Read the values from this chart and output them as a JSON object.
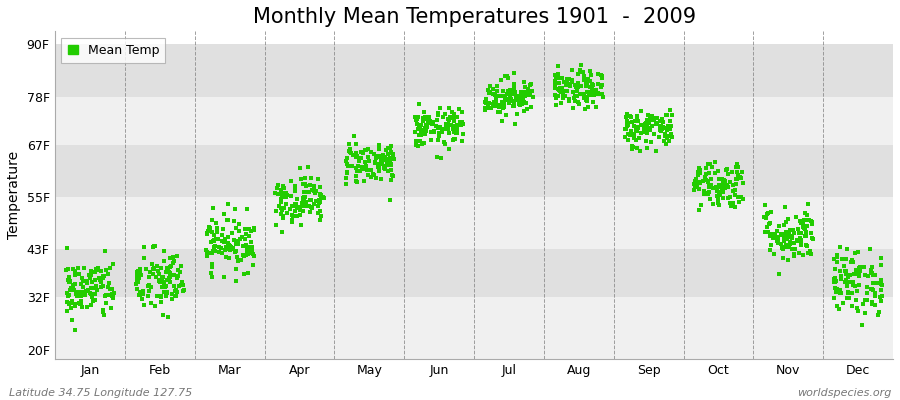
{
  "title": "Monthly Mean Temperatures 1901  -  2009",
  "ylabel": "Temperature",
  "yticks": [
    20,
    32,
    43,
    55,
    67,
    78,
    90
  ],
  "ytick_labels": [
    "20F",
    "32F",
    "43F",
    "55F",
    "67F",
    "78F",
    "90F"
  ],
  "ylim": [
    18,
    93
  ],
  "months": [
    "Jan",
    "Feb",
    "Mar",
    "Apr",
    "May",
    "Jun",
    "Jul",
    "Aug",
    "Sep",
    "Oct",
    "Nov",
    "Dec"
  ],
  "xlim": [
    0,
    12
  ],
  "dot_color": "#22cc00",
  "dot_size": 5,
  "bg_light": "#f0f0f0",
  "bg_dark": "#e0e0e0",
  "legend_label": "Mean Temp",
  "bottom_left_text": "Latitude 34.75 Longitude 127.75",
  "bottom_right_text": "worldspecies.org",
  "mean_temps_f": [
    33.8,
    35.5,
    44.6,
    54.5,
    63.0,
    70.7,
    78.0,
    79.5,
    70.7,
    58.0,
    46.4,
    35.5
  ],
  "std_temps_f": [
    3.5,
    3.8,
    3.2,
    2.8,
    2.5,
    2.3,
    2.2,
    2.2,
    2.3,
    2.8,
    3.2,
    3.8
  ],
  "n_years": 109,
  "seed": 42,
  "title_fontsize": 15,
  "axis_label_fontsize": 10,
  "tick_fontsize": 9,
  "annotation_fontsize": 8
}
